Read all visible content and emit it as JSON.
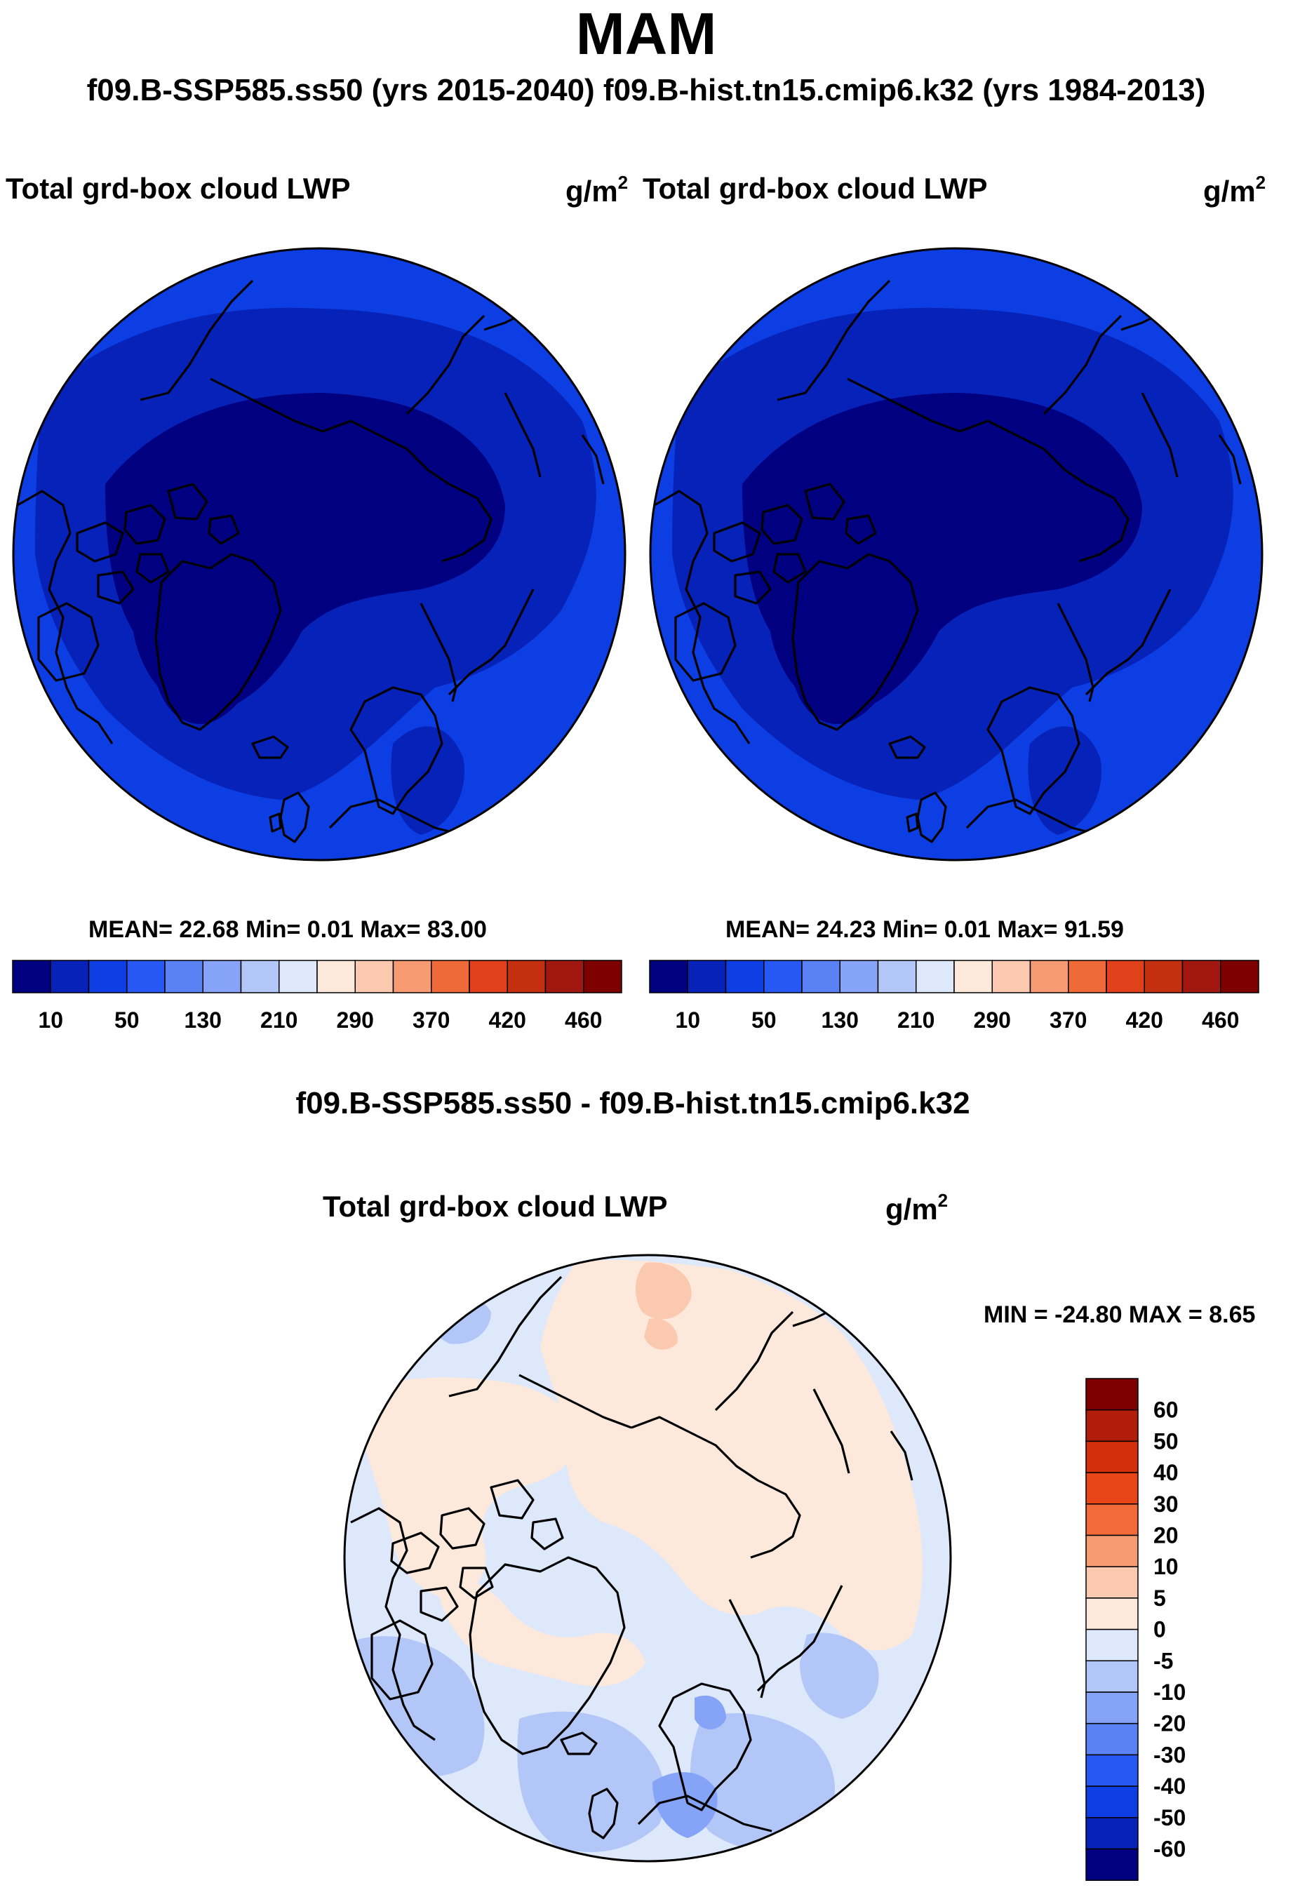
{
  "figure": {
    "season": "MAM",
    "subtitle": "f09.B-SSP585.ss50 (yrs 2015-2040)  f09.B-hist.tn15.cmip6.k32 (yrs 1984-2013)",
    "diff_title": "f09.B-SSP585.ss50 - f09.B-hist.tn15.cmip6.k32"
  },
  "panels": {
    "left": {
      "variable": "Total grd-box cloud LWP",
      "units": "g/m",
      "units_exp": "2",
      "stats": "MEAN=  22.68  Min=    0.01  Max=  83.00",
      "mean": 22.68,
      "min": 0.01,
      "max": 83.0
    },
    "right": {
      "variable": "Total grd-box cloud LWP",
      "units": "g/m",
      "units_exp": "2",
      "stats": "MEAN=  24.23  Min=    0.01  Max=  91.59",
      "mean": 24.23,
      "min": 0.01,
      "max": 91.59
    },
    "diff": {
      "variable": "Total grd-box cloud LWP",
      "units": "g/m",
      "units_exp": "2",
      "stats": "MIN = -24.80 MAX =    8.65",
      "min": -24.8,
      "max": 8.65
    }
  },
  "colorbars": {
    "abs": {
      "labels": [
        "10",
        "50",
        "130",
        "210",
        "290",
        "370",
        "420",
        "460"
      ],
      "colors": [
        "#000080",
        "#0622b8",
        "#0d3ee3",
        "#2858f3",
        "#5a82f5",
        "#86a4f7",
        "#b2c6f8",
        "#dde8fb",
        "#fde9db",
        "#fbc8b0",
        "#f79b72",
        "#ee6a39",
        "#e0401a",
        "#c42f0f",
        "#a21810",
        "#7f0000"
      ]
    },
    "diff": {
      "labels": [
        "60",
        "50",
        "40",
        "30",
        "20",
        "10",
        "5",
        "0",
        "-5",
        "-10",
        "-20",
        "-30",
        "-40",
        "-50",
        "-60"
      ],
      "colors": [
        "#7f0000",
        "#b21c0a",
        "#d32f0b",
        "#e84616",
        "#f26a3a",
        "#f79b72",
        "#fbc8b0",
        "#fde9db",
        "#dde8fb",
        "#b2c6f8",
        "#86a4f7",
        "#5a82f5",
        "#2858f3",
        "#0d3ee3",
        "#0622b8",
        "#000080"
      ]
    }
  }
}
